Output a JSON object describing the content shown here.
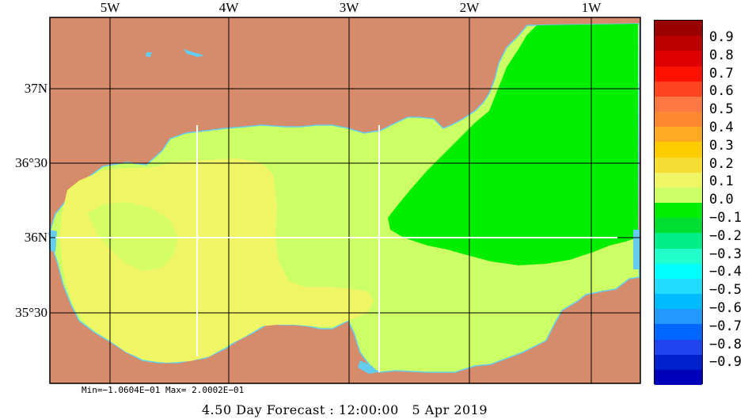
{
  "map": {
    "longitude_labels": [
      "5W",
      "4W",
      "3W",
      "2W",
      "1W"
    ],
    "latitude_labels": [
      "37N",
      "36°30",
      "36N",
      "35°30"
    ],
    "colors": {
      "land": "#d68b6b",
      "sea_boundary": "#66ccee",
      "grid": "#000000",
      "section_lines": "#ffffff"
    }
  },
  "colorbar": {
    "ticks": [
      "0.9",
      "0.8",
      "0.7",
      "0.6",
      "0.5",
      "0.4",
      "0.3",
      "0.2",
      "0.1",
      "0.0",
      "−0.1",
      "−0.2",
      "−0.3",
      "−0.4",
      "−0.5",
      "−0.6",
      "−0.7",
      "−0.8",
      "−0.9"
    ],
    "colors": [
      "#990000",
      "#bb0000",
      "#dd0000",
      "#ff1100",
      "#ff4422",
      "#ff7744",
      "#ff8833",
      "#ffaa22",
      "#ffcc00",
      "#f5dd33",
      "#f0f566",
      "#ccff66",
      "#00ee00",
      "#00dd33",
      "#00ee88",
      "#22ffcc",
      "#00ffff",
      "#22ddff",
      "#00bbff",
      "#2299ff",
      "#0066ff",
      "#2244ee",
      "#0022cc",
      "#0000bb"
    ]
  },
  "stats": {
    "text": "Min=−1.0604E−01  Max= 2.0002E−01"
  },
  "forecast": {
    "text": "4.50 Day Forecast : 12:00:00   5 Apr 2019"
  }
}
